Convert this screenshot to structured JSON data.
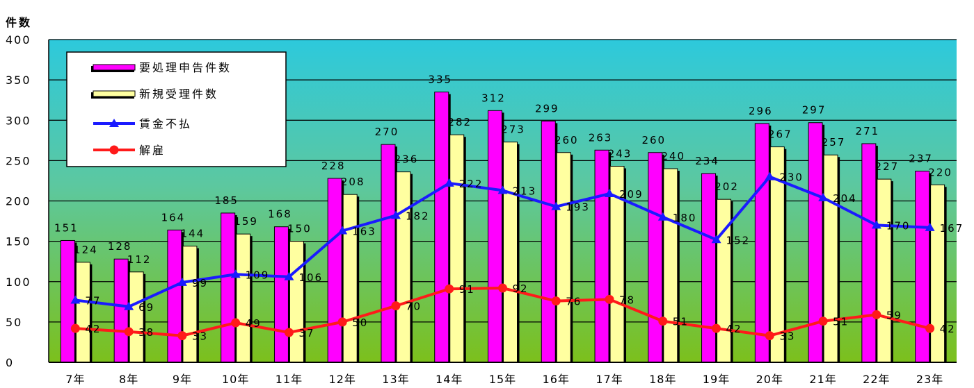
{
  "chart_data": {
    "type": "bar",
    "ylabel": "件数",
    "ylim": [
      0,
      400
    ],
    "yticks": [
      0,
      50,
      100,
      150,
      200,
      250,
      300,
      350,
      400
    ],
    "categories": [
      "7年",
      "8年",
      "9年",
      "10年",
      "11年",
      "12年",
      "13年",
      "14年",
      "15年",
      "16年",
      "17年",
      "18年",
      "19年",
      "20年",
      "21年",
      "22年",
      "23年"
    ],
    "series": [
      {
        "name": "要処理申告件数",
        "kind": "bar",
        "color": "#ff00ff",
        "values": [
          151,
          128,
          164,
          185,
          168,
          228,
          270,
          335,
          312,
          299,
          263,
          260,
          234,
          296,
          297,
          271,
          237
        ]
      },
      {
        "name": "新規受理件数",
        "kind": "bar",
        "color": "#ffffa0",
        "values": [
          124,
          112,
          144,
          159,
          150,
          208,
          236,
          282,
          273,
          260,
          243,
          240,
          202,
          267,
          257,
          227,
          220
        ]
      },
      {
        "name": "賃金不払",
        "kind": "line",
        "color": "#1a1aff",
        "values": [
          77,
          69,
          99,
          109,
          106,
          163,
          182,
          222,
          213,
          193,
          209,
          180,
          152,
          230,
          204,
          170,
          167
        ]
      },
      {
        "name": "解雇",
        "kind": "line",
        "color": "#ff1a1a",
        "values": [
          42,
          38,
          33,
          49,
          37,
          50,
          70,
          91,
          92,
          76,
          78,
          51,
          42,
          33,
          51,
          59,
          42
        ]
      }
    ],
    "grid": true,
    "legend": "top-left",
    "background": {
      "top": "#2dc8dc",
      "bottom": "#7ac020"
    }
  }
}
